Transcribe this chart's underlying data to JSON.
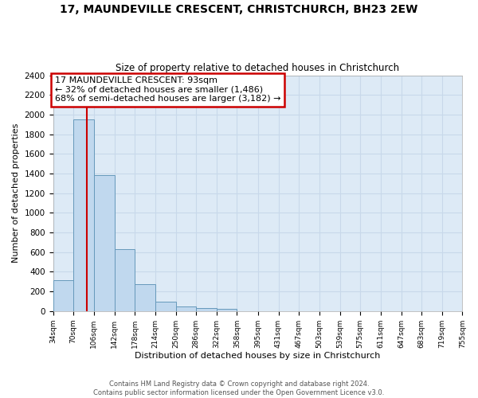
{
  "title": "17, MAUNDEVILLE CRESCENT, CHRISTCHURCH, BH23 2EW",
  "subtitle": "Size of property relative to detached houses in Christchurch",
  "xlabel": "Distribution of detached houses by size in Christchurch",
  "ylabel": "Number of detached properties",
  "footer_line1": "Contains HM Land Registry data © Crown copyright and database right 2024.",
  "footer_line2": "Contains public sector information licensed under the Open Government Licence v3.0.",
  "bar_color": "#c0d8ee",
  "bar_edge_color": "#6699bb",
  "grid_color": "#c8d8ea",
  "background_color": "#ddeaf6",
  "annotation_line1": "17 MAUNDEVILLE CRESCENT: 93sqm",
  "annotation_line2": "← 32% of detached houses are smaller (1,486)",
  "annotation_line3": "68% of semi-detached houses are larger (3,182) →",
  "annotation_box_edgecolor": "#cc0000",
  "property_line_color": "#cc0000",
  "property_size_sqm": 93,
  "bin_edges": [
    34,
    70,
    106,
    142,
    178,
    214,
    250,
    286,
    322,
    358,
    395,
    431,
    467,
    503,
    539,
    575,
    611,
    647,
    683,
    719,
    755
  ],
  "bin_counts": [
    315,
    1950,
    1385,
    630,
    275,
    100,
    47,
    30,
    25,
    0,
    0,
    0,
    0,
    0,
    0,
    0,
    0,
    0,
    0,
    0
  ],
  "ylim_max": 2400,
  "ytick_step": 200
}
